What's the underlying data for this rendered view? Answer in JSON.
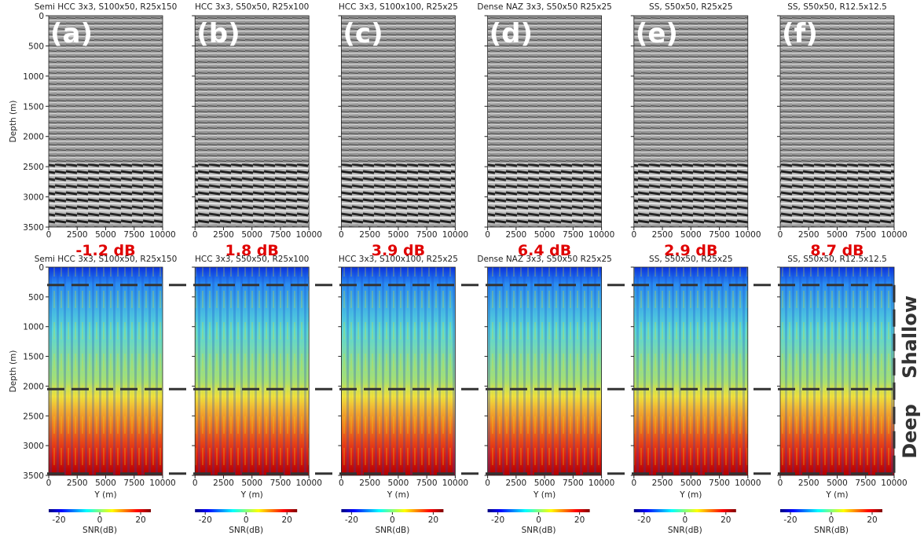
{
  "panels": [
    {
      "label": "(a)",
      "title": "Semi HCC 3x3, S100x50, R25x150",
      "snr_gain": "-1.2 dB"
    },
    {
      "label": "(b)",
      "title": "HCC 3x3, S50x50, R25x100",
      "snr_gain": "1.8 dB"
    },
    {
      "label": "(c)",
      "title": "HCC 3x3, S100x100, R25x25",
      "snr_gain": "3.9 dB"
    },
    {
      "label": "(d)",
      "title": "Dense NAZ 3x3, S50x50 R25x25",
      "snr_gain": "6.4 dB"
    },
    {
      "label": "(e)",
      "title": "SS, S50x50, R25x25",
      "snr_gain": "2.9 dB"
    },
    {
      "label": "(f)",
      "title": "SS, S50x50, R12.5x12.5",
      "snr_gain": "8.7 dB"
    }
  ],
  "axes": {
    "ylabel": "Depth (m)",
    "xlabel": "Y (m)",
    "xlim": [
      0,
      10000
    ],
    "xticks": [
      0,
      2500,
      5000,
      7500,
      10000
    ],
    "ylim": [
      0,
      3500
    ],
    "yticks": [
      0,
      500,
      1000,
      1500,
      2000,
      2500,
      3000,
      3500
    ]
  },
  "colorbar": {
    "label": "SNR(dB)",
    "lim": [
      -25,
      25
    ],
    "ticks": [
      -20,
      0,
      20
    ]
  },
  "zones": {
    "labels": [
      "Shallow",
      "Deep"
    ],
    "boundaries": [
      300,
      2050,
      3470
    ]
  }
}
